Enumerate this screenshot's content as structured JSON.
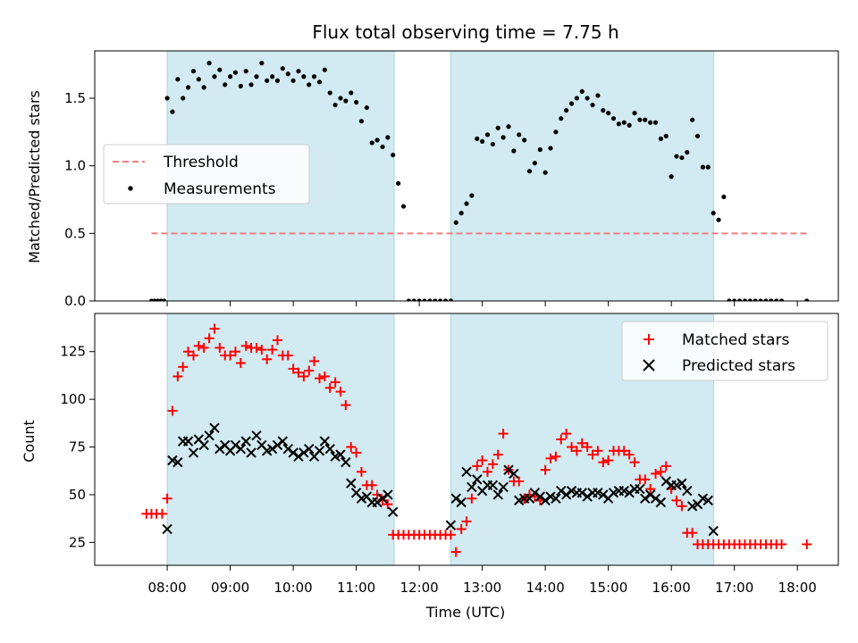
{
  "chart_data": [
    {
      "type": "scatter",
      "title": "Flux total observing time = 7.75 h",
      "ylabel": "Matched/Predicted stars",
      "ylim": [
        0,
        1.85
      ],
      "yticks": [
        0.0,
        0.5,
        1.0,
        1.5
      ],
      "ytick_labels": [
        "0.0",
        "0.5",
        "1.0",
        "1.5"
      ],
      "xlim": [
        6.85,
        18.65
      ],
      "observing_windows": [
        [
          8.0,
          11.6
        ],
        [
          12.5,
          16.67
        ]
      ],
      "window_color": "#d2eaf1",
      "legend_position": "center-left",
      "threshold": {
        "name": "Threshold",
        "value": 0.5,
        "x_range": [
          7.75,
          18.15
        ],
        "color": "#f08080"
      },
      "series": [
        {
          "name": "Measurements",
          "color": "#000000",
          "x": [
            7.75,
            7.8,
            7.85,
            7.9,
            7.95,
            8.0,
            8.083,
            8.167,
            8.25,
            8.333,
            8.417,
            8.5,
            8.583,
            8.667,
            8.75,
            8.833,
            8.917,
            9.0,
            9.083,
            9.167,
            9.25,
            9.333,
            9.417,
            9.5,
            9.583,
            9.667,
            9.75,
            9.833,
            9.917,
            10.0,
            10.083,
            10.167,
            10.25,
            10.333,
            10.417,
            10.5,
            10.583,
            10.667,
            10.75,
            10.833,
            10.917,
            11.0,
            11.083,
            11.167,
            11.25,
            11.333,
            11.417,
            11.5,
            11.583,
            11.667,
            11.75,
            11.833,
            11.917,
            12.0,
            12.083,
            12.167,
            12.25,
            12.333,
            12.417,
            12.5,
            12.583,
            12.667,
            12.75,
            12.833,
            12.917,
            13.0,
            13.083,
            13.167,
            13.25,
            13.333,
            13.417,
            13.5,
            13.583,
            13.667,
            13.75,
            13.833,
            13.917,
            14.0,
            14.083,
            14.167,
            14.25,
            14.333,
            14.417,
            14.5,
            14.583,
            14.667,
            14.75,
            14.833,
            14.917,
            15.0,
            15.083,
            15.167,
            15.25,
            15.333,
            15.417,
            15.5,
            15.583,
            15.667,
            15.75,
            15.833,
            15.917,
            16.0,
            16.083,
            16.167,
            16.25,
            16.333,
            16.417,
            16.5,
            16.583,
            16.667,
            16.75,
            16.833,
            16.917,
            17.0,
            17.083,
            17.167,
            17.25,
            17.333,
            17.417,
            17.5,
            17.583,
            17.667,
            17.75,
            18.15
          ],
          "y": [
            0.0,
            0.0,
            0.0,
            0.0,
            0.0,
            1.5,
            1.4,
            1.64,
            1.5,
            1.58,
            1.7,
            1.64,
            1.58,
            1.76,
            1.66,
            1.71,
            1.6,
            1.66,
            1.69,
            1.59,
            1.7,
            1.6,
            1.66,
            1.76,
            1.63,
            1.66,
            1.63,
            1.72,
            1.68,
            1.63,
            1.7,
            1.66,
            1.6,
            1.66,
            1.62,
            1.71,
            1.54,
            1.45,
            1.5,
            1.48,
            1.54,
            1.47,
            1.33,
            1.43,
            1.17,
            1.19,
            1.14,
            1.21,
            1.08,
            0.87,
            0.7,
            0.0,
            0.0,
            0.0,
            0.0,
            0.0,
            0.0,
            0.0,
            0.0,
            0.0,
            0.58,
            0.65,
            0.72,
            0.78,
            1.2,
            1.18,
            1.23,
            1.16,
            1.28,
            1.21,
            1.29,
            1.11,
            1.23,
            1.19,
            0.96,
            1.02,
            1.12,
            0.95,
            1.13,
            1.25,
            1.35,
            1.41,
            1.46,
            1.5,
            1.55,
            1.5,
            1.45,
            1.52,
            1.41,
            1.39,
            1.35,
            1.31,
            1.32,
            1.3,
            1.39,
            1.34,
            1.34,
            1.32,
            1.32,
            1.2,
            1.22,
            0.92,
            1.07,
            1.06,
            1.1,
            1.34,
            1.22,
            0.99,
            0.99,
            0.65,
            0.6,
            0.77,
            0.0,
            0.0,
            0.0,
            0.0,
            0.0,
            0.0,
            0.0,
            0.0,
            0.0,
            0.0,
            0.0,
            0.0
          ]
        }
      ]
    },
    {
      "type": "scatter",
      "xlabel": "Time (UTC)",
      "ylabel": "Count",
      "ylim": [
        13,
        145
      ],
      "yticks": [
        25,
        50,
        75,
        100,
        125
      ],
      "ytick_labels": [
        "25",
        "50",
        "75",
        "100",
        "125"
      ],
      "xlim": [
        6.85,
        18.65
      ],
      "xticks": [
        8,
        9,
        10,
        11,
        12,
        13,
        14,
        15,
        16,
        17,
        18
      ],
      "xtick_labels": [
        "08:00",
        "09:00",
        "10:00",
        "11:00",
        "12:00",
        "13:00",
        "14:00",
        "15:00",
        "16:00",
        "17:00",
        "18:00"
      ],
      "observing_windows": [
        [
          8.0,
          11.6
        ],
        [
          12.5,
          16.67
        ]
      ],
      "window_color": "#d2eaf1",
      "legend_position": "upper-right",
      "series": [
        {
          "name": "Matched stars",
          "marker": "plus",
          "color": "#ff0000",
          "x": [
            7.67,
            7.75,
            7.83,
            7.92,
            8.0,
            8.083,
            8.167,
            8.25,
            8.333,
            8.417,
            8.5,
            8.583,
            8.667,
            8.75,
            8.833,
            8.917,
            9.0,
            9.083,
            9.167,
            9.25,
            9.333,
            9.417,
            9.5,
            9.583,
            9.667,
            9.75,
            9.833,
            9.917,
            10.0,
            10.083,
            10.167,
            10.25,
            10.333,
            10.417,
            10.5,
            10.583,
            10.667,
            10.75,
            10.833,
            10.917,
            11.0,
            11.083,
            11.167,
            11.25,
            11.333,
            11.417,
            11.5,
            11.583,
            11.667,
            11.75,
            11.833,
            11.917,
            12.0,
            12.083,
            12.167,
            12.25,
            12.333,
            12.417,
            12.5,
            12.583,
            12.667,
            12.75,
            12.833,
            12.917,
            13.0,
            13.083,
            13.167,
            13.25,
            13.333,
            13.417,
            13.5,
            13.583,
            13.667,
            13.75,
            13.833,
            13.917,
            14.0,
            14.083,
            14.167,
            14.25,
            14.333,
            14.417,
            14.5,
            14.583,
            14.667,
            14.75,
            14.833,
            14.917,
            15.0,
            15.083,
            15.167,
            15.25,
            15.333,
            15.417,
            15.5,
            15.583,
            15.667,
            15.75,
            15.833,
            15.917,
            16.0,
            16.083,
            16.167,
            16.25,
            16.333,
            16.417,
            16.5,
            16.583,
            16.667,
            16.75,
            16.833,
            16.917,
            17.0,
            17.083,
            17.167,
            17.25,
            17.333,
            17.417,
            17.5,
            17.583,
            17.667,
            17.75,
            18.15
          ],
          "y": [
            40,
            40,
            40,
            40,
            48,
            94,
            112,
            117,
            125,
            123,
            128,
            127,
            132,
            137,
            127,
            123,
            123,
            125,
            119,
            128,
            127,
            127,
            126,
            121,
            126,
            131,
            123,
            123,
            116,
            114,
            112,
            115,
            120,
            111,
            112,
            106,
            109,
            104,
            97,
            75,
            72,
            62,
            55,
            55,
            50,
            47,
            45,
            29,
            29,
            29,
            29,
            29,
            29,
            29,
            29,
            29,
            29,
            29,
            29,
            20,
            32,
            36,
            48,
            65,
            68,
            62,
            66,
            71,
            82,
            63,
            57,
            57,
            48,
            50,
            49,
            47,
            63,
            69,
            70,
            79,
            82,
            75,
            73,
            77,
            75,
            71,
            73,
            67,
            68,
            73,
            73,
            73,
            71,
            67,
            58,
            58,
            53,
            61,
            62,
            65,
            53,
            47,
            44,
            30,
            30,
            24,
            24,
            24,
            24,
            24,
            24,
            24,
            24,
            24,
            24,
            24,
            24,
            24,
            24,
            24,
            24,
            24,
            24
          ]
        },
        {
          "name": "Predicted stars",
          "marker": "x",
          "color": "#000000",
          "x": [
            8.0,
            8.083,
            8.167,
            8.25,
            8.333,
            8.417,
            8.5,
            8.583,
            8.667,
            8.75,
            8.833,
            8.917,
            9.0,
            9.083,
            9.167,
            9.25,
            9.333,
            9.417,
            9.5,
            9.583,
            9.667,
            9.75,
            9.833,
            9.917,
            10.0,
            10.083,
            10.167,
            10.25,
            10.333,
            10.417,
            10.5,
            10.583,
            10.667,
            10.75,
            10.833,
            10.917,
            11.0,
            11.083,
            11.167,
            11.25,
            11.333,
            11.417,
            11.5,
            11.583,
            12.5,
            12.583,
            12.667,
            12.75,
            12.833,
            12.917,
            13.0,
            13.083,
            13.167,
            13.25,
            13.333,
            13.417,
            13.5,
            13.583,
            13.667,
            13.75,
            13.833,
            13.917,
            14.0,
            14.083,
            14.167,
            14.25,
            14.333,
            14.417,
            14.5,
            14.583,
            14.667,
            14.75,
            14.833,
            14.917,
            15.0,
            15.083,
            15.167,
            15.25,
            15.333,
            15.417,
            15.5,
            15.583,
            15.667,
            15.75,
            15.833,
            15.917,
            16.0,
            16.083,
            16.167,
            16.25,
            16.333,
            16.417,
            16.5,
            16.583,
            16.667
          ],
          "y": [
            32,
            68,
            67,
            78,
            78,
            72,
            79,
            76,
            81,
            85,
            74,
            76,
            73,
            76,
            74,
            78,
            72,
            81,
            76,
            73,
            74,
            76,
            78,
            74,
            72,
            70,
            72,
            74,
            70,
            73,
            78,
            74,
            70,
            71,
            67,
            56,
            51,
            48,
            49,
            46,
            46,
            48,
            50,
            41,
            34,
            48,
            46,
            62,
            54,
            58,
            52,
            55,
            55,
            50,
            54,
            63,
            61,
            47,
            48,
            48,
            51,
            49,
            47,
            49,
            48,
            52,
            50,
            52,
            51,
            51,
            49,
            51,
            51,
            50,
            48,
            51,
            52,
            52,
            51,
            53,
            53,
            48,
            50,
            48,
            46,
            57,
            55,
            55,
            56,
            52,
            44,
            45,
            48,
            47,
            31
          ]
        }
      ]
    }
  ]
}
